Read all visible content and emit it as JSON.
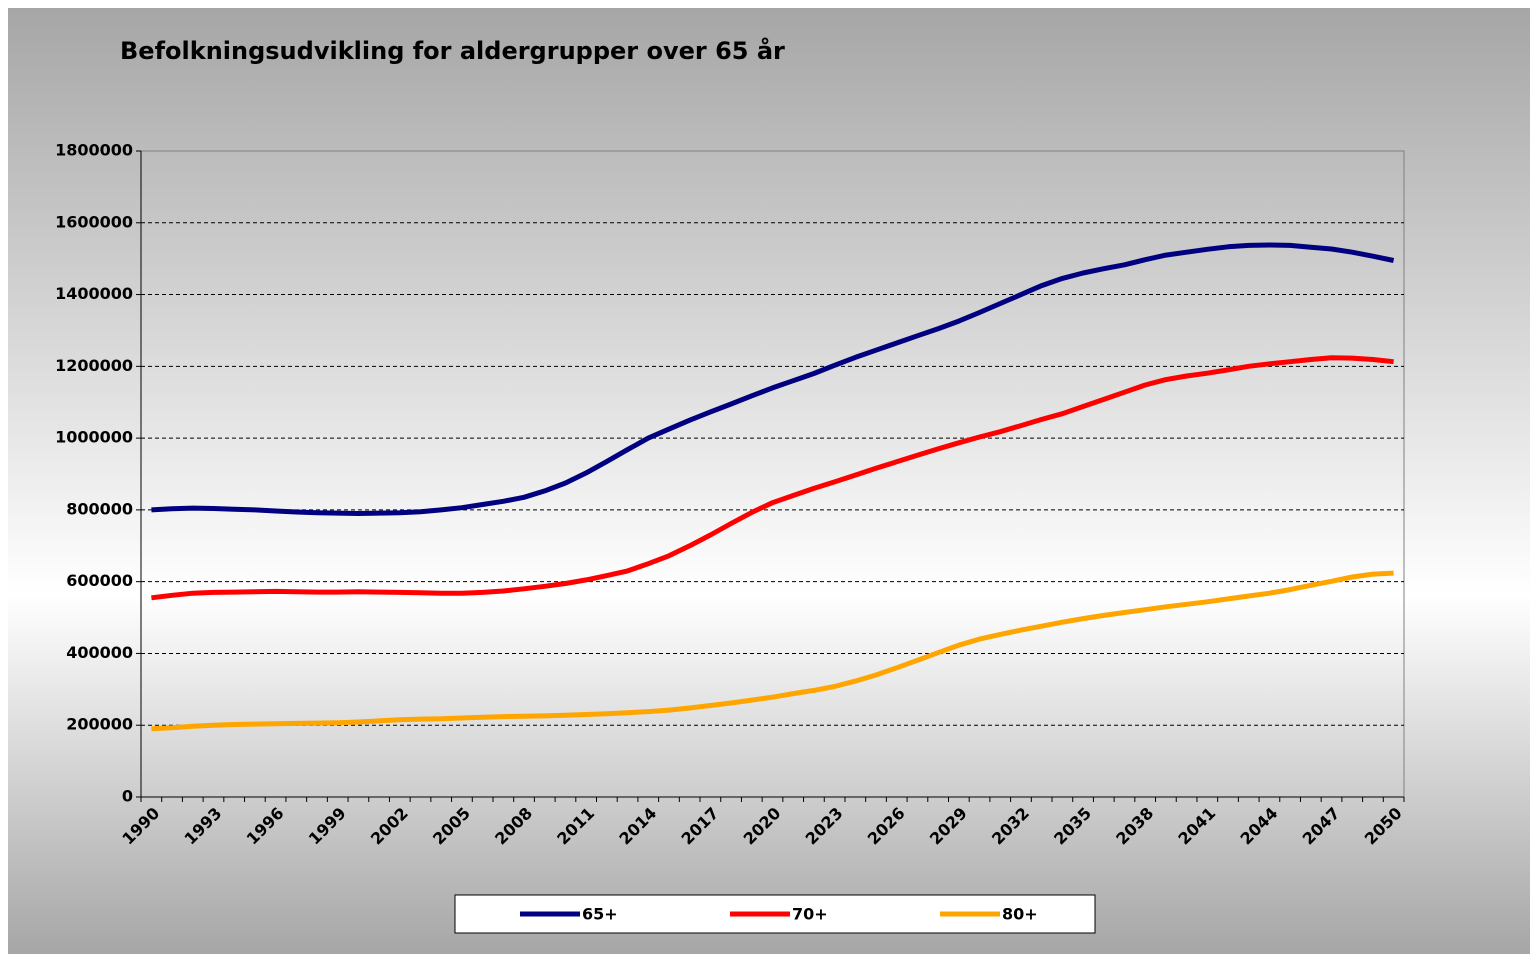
{
  "chart_data": {
    "type": "line",
    "title": "Befolkningsudvikling for aldergrupper over 65 år",
    "categories": [
      "1990",
      null,
      null,
      "1993",
      null,
      null,
      "1996",
      null,
      null,
      "1999",
      null,
      null,
      "2002",
      null,
      null,
      "2005",
      null,
      null,
      "2008",
      null,
      null,
      "2011",
      null,
      null,
      "2014",
      null,
      null,
      "2017",
      null,
      null,
      "2020",
      null,
      null,
      "2023",
      null,
      null,
      "2026",
      null,
      null,
      "2029",
      null,
      null,
      "2032",
      null,
      null,
      "2035",
      null,
      null,
      "2038",
      null,
      null,
      "2041",
      null,
      null,
      "2044",
      null,
      null,
      "2047",
      null,
      null,
      "2050"
    ],
    "series": [
      {
        "name": "65+",
        "color": "#000080",
        "values": [
          800000,
          803000,
          805000,
          804000,
          802000,
          800000,
          797000,
          794000,
          792000,
          791000,
          790000,
          791000,
          792000,
          795000,
          800000,
          806000,
          815000,
          824000,
          835000,
          853000,
          875000,
          903000,
          935000,
          968000,
          1000000,
          1025000,
          1050000,
          1073000,
          1095000,
          1118000,
          1140000,
          1160000,
          1180000,
          1203000,
          1225000,
          1245000,
          1265000,
          1285000,
          1305000,
          1326000,
          1350000,
          1375000,
          1400000,
          1425000,
          1445000,
          1460000,
          1472000,
          1483000,
          1497000,
          1510000,
          1518000,
          1526000,
          1533000,
          1537000,
          1538000,
          1537000,
          1532000,
          1527000,
          1518000,
          1507000,
          1495000
        ]
      },
      {
        "name": "70+",
        "color": "#ff0000",
        "values": [
          555000,
          562000,
          568000,
          570000,
          571000,
          572000,
          573000,
          572000,
          571000,
          571000,
          572000,
          571000,
          570000,
          569000,
          568000,
          568000,
          570000,
          574000,
          580000,
          587000,
          595000,
          605000,
          617000,
          630000,
          650000,
          672000,
          700000,
          730000,
          762000,
          793000,
          820000,
          840000,
          860000,
          878000,
          897000,
          916000,
          934000,
          952000,
          970000,
          987000,
          1003000,
          1018000,
          1035000,
          1052000,
          1068000,
          1088000,
          1108000,
          1128000,
          1148000,
          1163000,
          1173000,
          1181000,
          1190000,
          1200000,
          1207000,
          1213000,
          1219000,
          1224000,
          1223000,
          1219000,
          1213000
        ]
      },
      {
        "name": "80+",
        "color": "#ffa500",
        "values": [
          190000,
          193000,
          197000,
          200000,
          202000,
          203000,
          204000,
          205000,
          206000,
          207000,
          209000,
          212000,
          215000,
          217000,
          218000,
          220000,
          222000,
          224000,
          225000,
          226000,
          228000,
          230000,
          232000,
          235000,
          238000,
          242000,
          248000,
          255000,
          262000,
          270000,
          278000,
          288000,
          297000,
          308000,
          323000,
          340000,
          360000,
          381000,
          402000,
          423000,
          440000,
          453000,
          465000,
          476000,
          487000,
          497000,
          506000,
          514000,
          522000,
          530000,
          537000,
          544000,
          552000,
          560000,
          568000,
          578000,
          590000,
          601000,
          613000,
          621000,
          624000
        ]
      }
    ],
    "ylim": [
      0,
      1800000
    ],
    "yticks": [
      0,
      200000,
      400000,
      600000,
      800000,
      1000000,
      1200000,
      1400000,
      1600000,
      1800000
    ],
    "grid": true,
    "legend": "bottom"
  }
}
